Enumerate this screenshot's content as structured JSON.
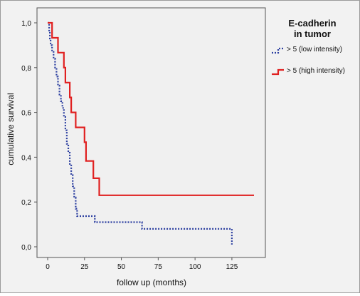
{
  "chart_data": {
    "type": "line",
    "chart_kind": "kaplan-meier step curves",
    "xlabel": "follow up (months)",
    "ylabel": "cumulative survival",
    "xlim": [
      0,
      140
    ],
    "ylim": [
      0,
      1.0
    ],
    "x_ticks": [
      "0",
      "25",
      "50",
      "75",
      "100",
      "125"
    ],
    "y_ticks": [
      "0,0",
      "0,2",
      "0,4",
      "0,6",
      "0,8",
      "1,0"
    ],
    "grid": false,
    "legend": {
      "title_line1": "E-cadherin",
      "title_line2": "in tumor",
      "placement": "right of plot, top"
    },
    "series": [
      {
        "name": "> 5 (low intensity)",
        "color": "#2c3fa0",
        "style": "dotted",
        "points": [
          [
            0,
            1.0
          ],
          [
            1,
            0.96
          ],
          [
            1.5,
            0.93
          ],
          [
            2,
            0.9
          ],
          [
            3,
            0.87
          ],
          [
            4,
            0.84
          ],
          [
            5,
            0.8
          ],
          [
            6,
            0.76
          ],
          [
            7,
            0.72
          ],
          [
            8,
            0.68
          ],
          [
            9,
            0.65
          ],
          [
            10,
            0.62
          ],
          [
            11,
            0.58
          ],
          [
            12,
            0.52
          ],
          [
            13,
            0.46
          ],
          [
            14,
            0.42
          ],
          [
            15,
            0.37
          ],
          [
            16,
            0.32
          ],
          [
            17,
            0.27
          ],
          [
            18,
            0.22
          ],
          [
            19,
            0.17
          ],
          [
            20,
            0.137
          ],
          [
            32,
            0.11
          ],
          [
            64,
            0.08
          ],
          [
            125,
            0.08
          ],
          [
            125,
            0.01
          ]
        ]
      },
      {
        "name": "> 5 (high intensity)",
        "color": "#e02020",
        "style": "solid",
        "points": [
          [
            0,
            1.0
          ],
          [
            3,
            0.933
          ],
          [
            7,
            0.867
          ],
          [
            11,
            0.8
          ],
          [
            12,
            0.733
          ],
          [
            15,
            0.667
          ],
          [
            16,
            0.6
          ],
          [
            19,
            0.533
          ],
          [
            25,
            0.467
          ],
          [
            26,
            0.383
          ],
          [
            31,
            0.306
          ],
          [
            35,
            0.23
          ],
          [
            140,
            0.23
          ]
        ]
      }
    ]
  }
}
